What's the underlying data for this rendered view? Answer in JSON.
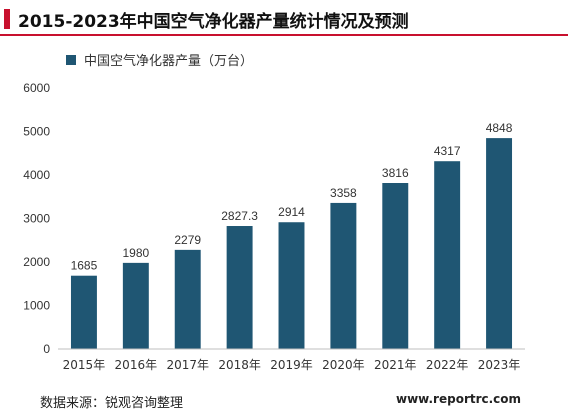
{
  "header": {
    "title": "2015-2023年中国空气净化器产量统计情况及预测"
  },
  "footer": {
    "source": "数据来源：锐观咨询整理",
    "website": "www.reportrc.com"
  },
  "colors": {
    "bar": "#1f5673",
    "accent": "#c8102e",
    "axis": "#bfbfbf",
    "text": "#333333"
  },
  "chart_data": {
    "type": "bar",
    "title": "",
    "categories": [
      "2015年",
      "2016年",
      "2017年",
      "2018年",
      "2019年",
      "2020年",
      "2021年",
      "2022年",
      "2023年"
    ],
    "series": [
      {
        "name": "中国空气净化器产量（万台）",
        "values": [
          1685,
          1980,
          2279,
          2827.3,
          2914,
          3358,
          3816,
          4317,
          4848
        ],
        "labels": [
          "1685",
          "1980",
          "2279",
          "2827.3",
          "2914",
          "3358",
          "3816",
          "4317",
          "4848"
        ]
      }
    ],
    "yticks": [
      0,
      1000,
      2000,
      3000,
      4000,
      5000,
      6000
    ],
    "ylim": [
      0,
      6000
    ],
    "grid": false,
    "legend": "top-left"
  }
}
